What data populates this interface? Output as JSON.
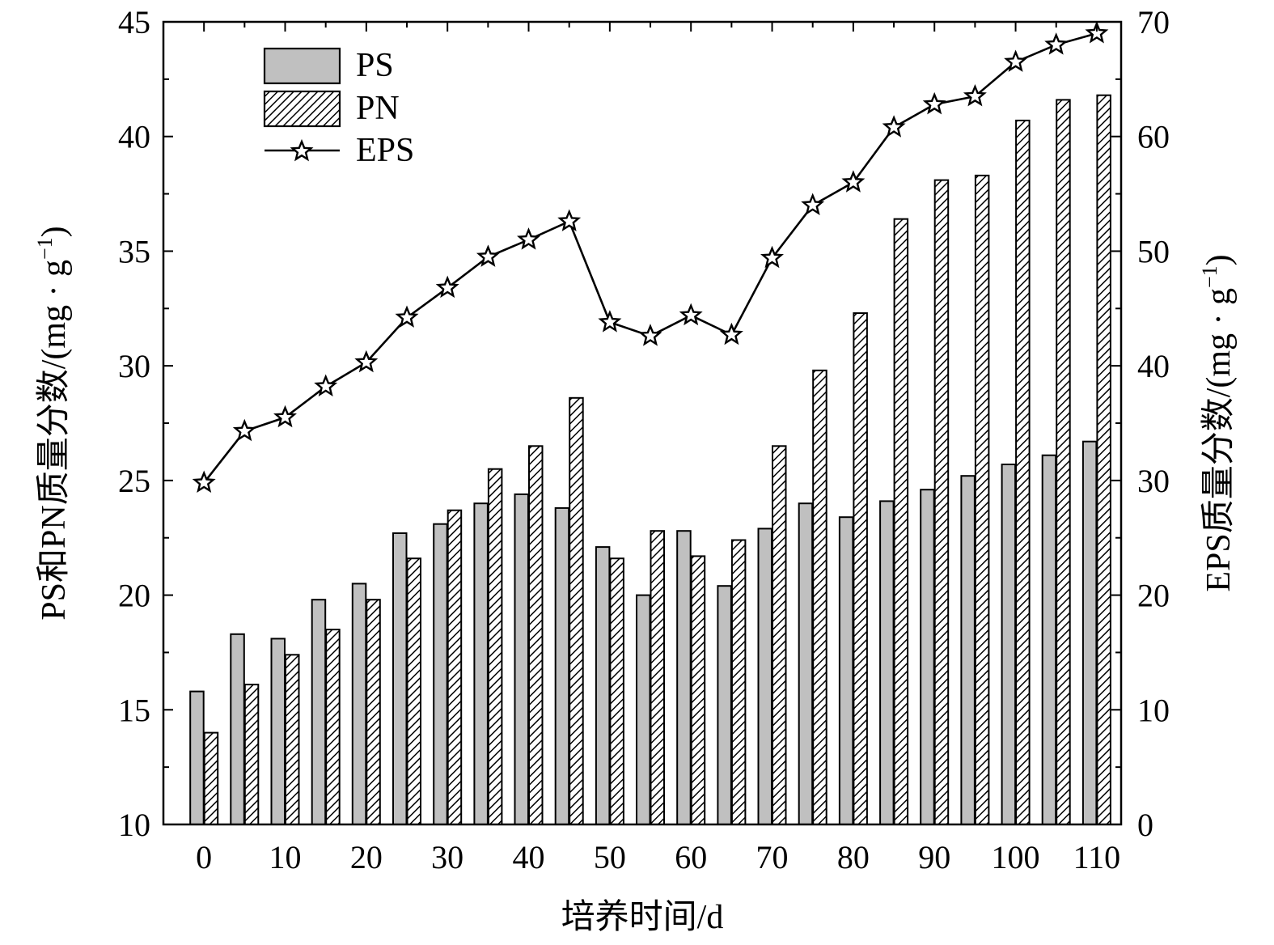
{
  "chart_data": {
    "type": "bar",
    "x": [
      0,
      5,
      10,
      15,
      20,
      25,
      30,
      35,
      40,
      45,
      50,
      55,
      60,
      65,
      70,
      75,
      80,
      85,
      90,
      95,
      100,
      105,
      110
    ],
    "xlim": [
      -5,
      113
    ],
    "xticks": [
      "0",
      "10",
      "20",
      "30",
      "40",
      "50",
      "60",
      "70",
      "80",
      "90",
      "100",
      "110"
    ],
    "xlabel": "培养时间/d",
    "ylabel_left": "PS和PN质量分数/(mg · g",
    "ylabel_right": "EPS质量分数/(mg · g",
    "ylabel_sup": "−1",
    "ylabel_close": ")",
    "ylim_left": [
      10,
      45
    ],
    "yticks_left": [
      "10",
      "15",
      "20",
      "25",
      "30",
      "35",
      "40",
      "45"
    ],
    "ylim_right": [
      0,
      70
    ],
    "yticks_right": [
      "0",
      "10",
      "20",
      "30",
      "40",
      "50",
      "60",
      "70"
    ],
    "series": [
      {
        "name": "PS",
        "kind": "bar",
        "axis": "left",
        "fill": "#c0c0c0",
        "values": [
          15.8,
          18.3,
          18.1,
          19.8,
          20.5,
          22.7,
          23.1,
          24.0,
          24.4,
          23.8,
          22.1,
          20.0,
          22.8,
          20.4,
          22.9,
          24.0,
          23.4,
          24.1,
          24.6,
          25.2,
          25.7,
          26.1,
          26.7
        ]
      },
      {
        "name": "PN",
        "kind": "bar",
        "axis": "left",
        "fill": "hatch",
        "values": [
          14.0,
          16.1,
          17.4,
          18.5,
          19.8,
          21.6,
          23.7,
          25.5,
          26.5,
          28.6,
          21.6,
          22.8,
          21.7,
          22.4,
          26.5,
          29.8,
          32.3,
          36.4,
          38.1,
          38.3,
          40.7,
          41.6,
          41.8
        ]
      },
      {
        "name": "EPS",
        "kind": "line",
        "axis": "right",
        "marker": "star",
        "values": [
          29.8,
          34.3,
          35.5,
          38.2,
          40.3,
          44.2,
          46.8,
          49.5,
          51.0,
          52.6,
          43.8,
          42.6,
          44.4,
          42.7,
          49.4,
          54.0,
          56.0,
          60.8,
          62.8,
          63.5,
          66.5,
          68.0,
          69.0
        ]
      }
    ],
    "legend": {
      "placement": "top-left",
      "labels": [
        "PS",
        "PN",
        "EPS"
      ]
    }
  }
}
